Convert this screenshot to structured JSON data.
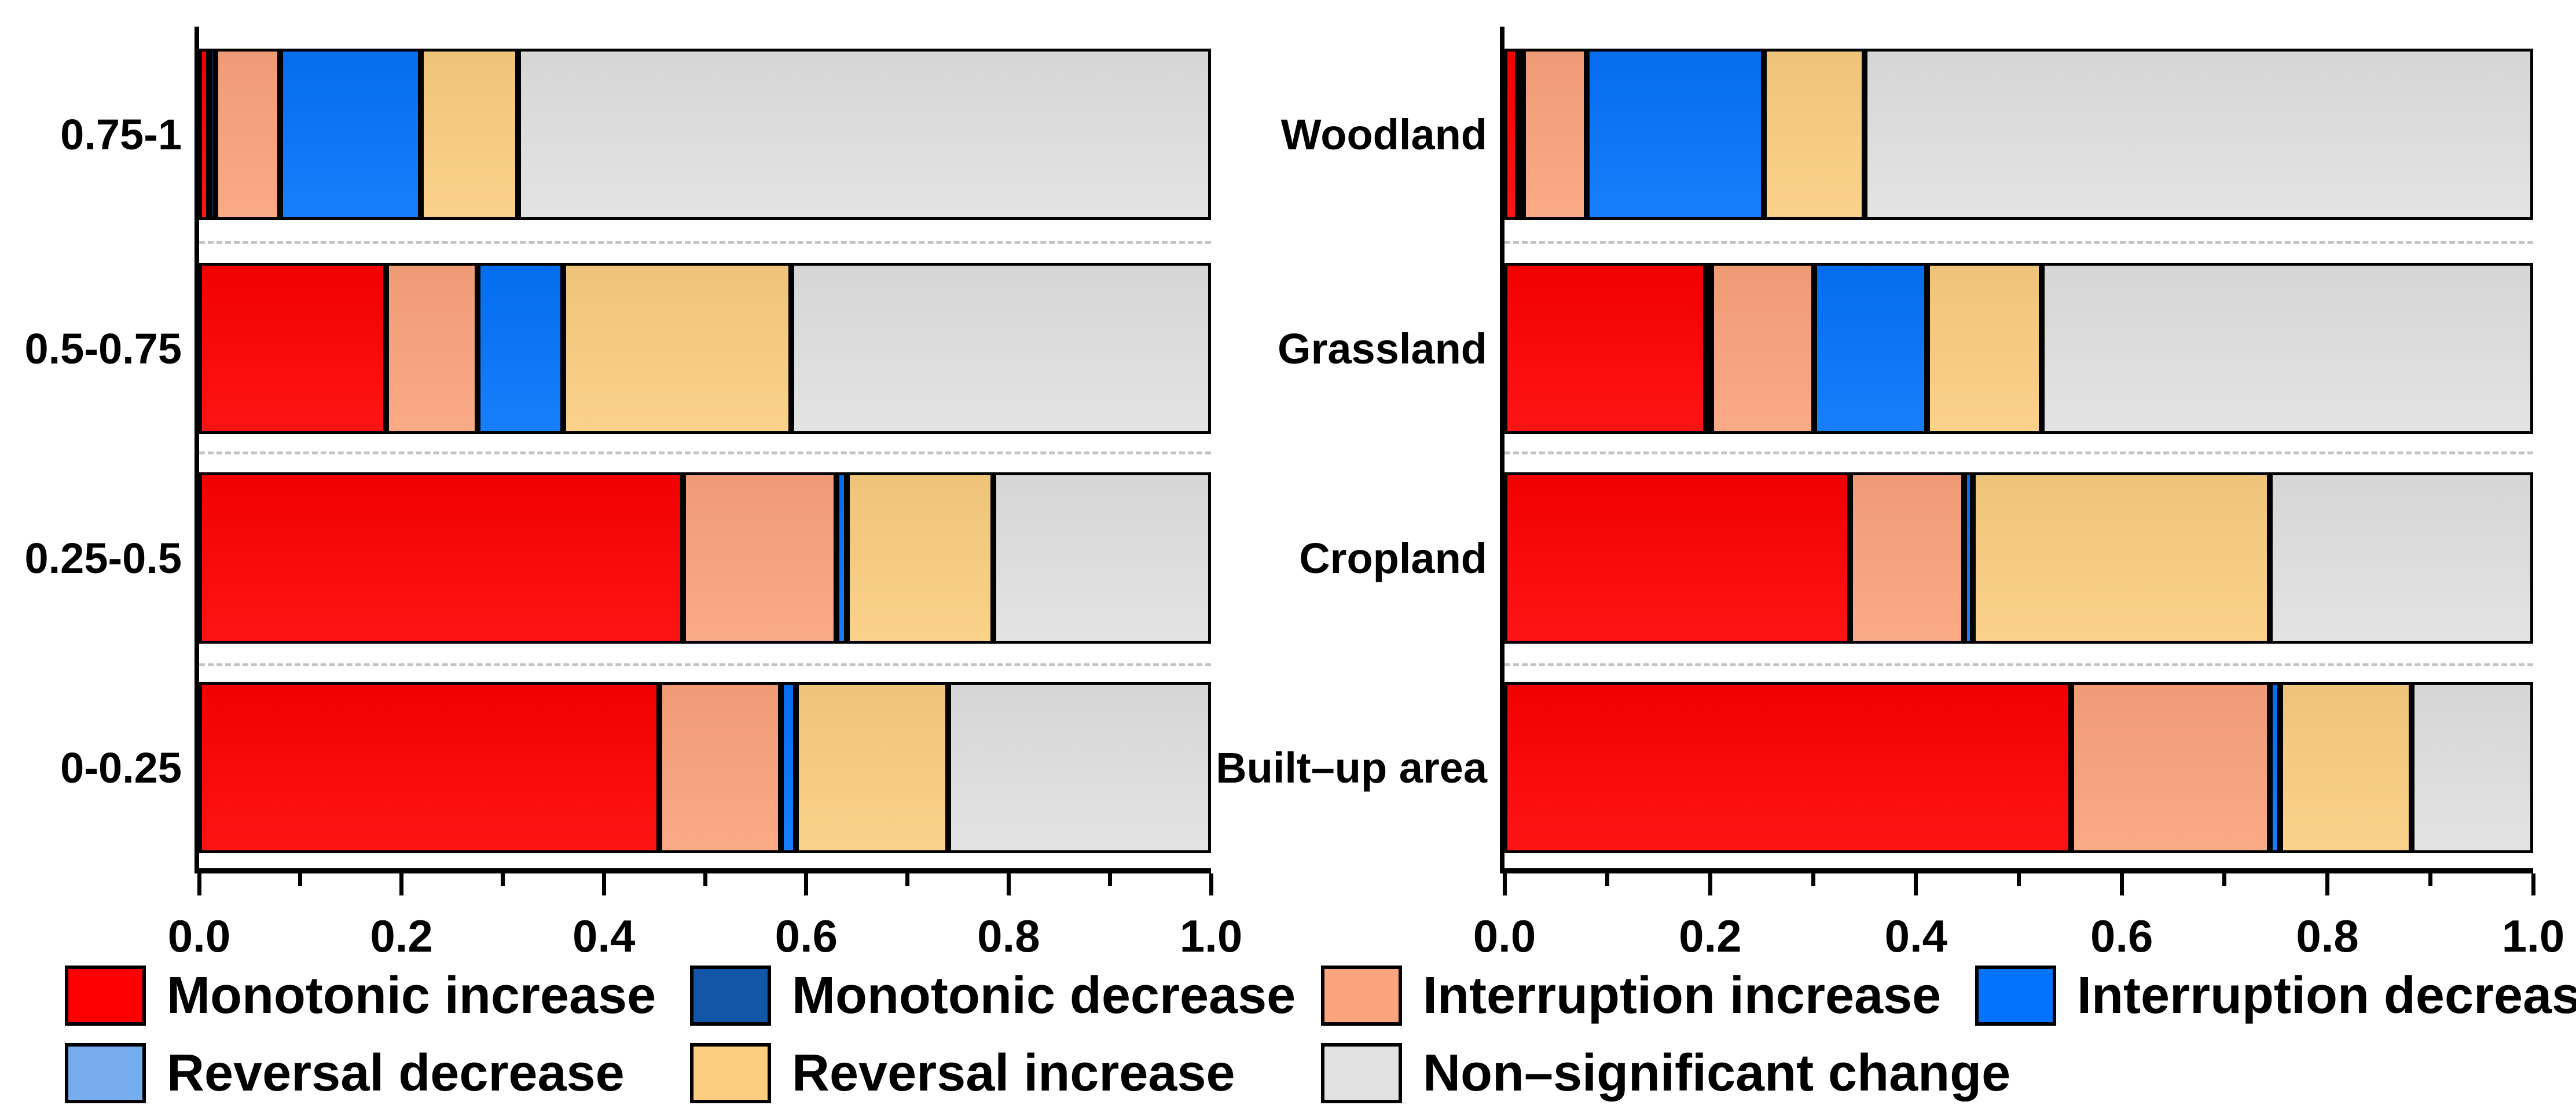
{
  "figure": {
    "background": "#ffffff",
    "axis_color": "#000000",
    "gridline_color": "#c3c3c3",
    "text_color": "#000000"
  },
  "chart_data": [
    {
      "type": "bar",
      "orientation": "horizontal-stacked",
      "title": "",
      "xlabel": "",
      "ylabel": "",
      "xlim": [
        0,
        1
      ],
      "x_ticks": [
        "0.0",
        "0.2",
        "0.4",
        "0.6",
        "0.8",
        "1.0"
      ],
      "grid": "dashed horizontal separators between bars",
      "categories": [
        "0.75-1",
        "0.5-0.75",
        "0.25-0.5",
        "0-0.25"
      ],
      "series": [
        {
          "name": "Monotonic increase",
          "color": "#fe0000",
          "values": [
            0.01,
            0.185,
            0.478,
            0.455
          ]
        },
        {
          "name": "Monotonic decrease",
          "color": "#1356a8",
          "values": [
            0.006,
            0.0,
            0.0,
            0.0
          ]
        },
        {
          "name": "Interruption increase",
          "color": "#fba37c",
          "values": [
            0.064,
            0.09,
            0.152,
            0.12
          ]
        },
        {
          "name": "Interruption decrease",
          "color": "#0473fb",
          "values": [
            0.139,
            0.085,
            0.01,
            0.015
          ]
        },
        {
          "name": "Reversal decrease",
          "color": "#76adf1",
          "values": [
            0.0,
            0.0,
            0.0,
            0.0
          ]
        },
        {
          "name": "Reversal increase",
          "color": "#fbce80",
          "values": [
            0.096,
            0.225,
            0.145,
            0.15
          ]
        },
        {
          "name": "Non–significant change",
          "color": "#e1e1e1",
          "values": [
            0.685,
            0.415,
            0.215,
            0.26
          ]
        }
      ]
    },
    {
      "type": "bar",
      "orientation": "horizontal-stacked",
      "title": "",
      "xlabel": "",
      "ylabel": "",
      "xlim": [
        0,
        1
      ],
      "x_ticks": [
        "0.0",
        "0.2",
        "0.4",
        "0.6",
        "0.8",
        "1.0"
      ],
      "grid": "dashed horizontal separators between bars",
      "categories": [
        "Woodland",
        "Grassland",
        "Cropland",
        "Built–up area"
      ],
      "series": [
        {
          "name": "Monotonic increase",
          "color": "#fe0000",
          "values": [
            0.013,
            0.196,
            0.336,
            0.551
          ]
        },
        {
          "name": "Monotonic decrease",
          "color": "#1356a8",
          "values": [
            0.005,
            0.005,
            0.0,
            0.0
          ]
        },
        {
          "name": "Interruption increase",
          "color": "#fba37c",
          "values": [
            0.062,
            0.1,
            0.111,
            0.193
          ]
        },
        {
          "name": "Interruption decrease",
          "color": "#0473fb",
          "values": [
            0.172,
            0.11,
            0.008,
            0.01
          ]
        },
        {
          "name": "Reversal decrease",
          "color": "#76adf1",
          "values": [
            0.0,
            0.0,
            0.0,
            0.0
          ]
        },
        {
          "name": "Reversal increase",
          "color": "#fbce80",
          "values": [
            0.098,
            0.111,
            0.289,
            0.128
          ]
        },
        {
          "name": "Non–significant change",
          "color": "#e1e1e1",
          "values": [
            0.65,
            0.478,
            0.256,
            0.118
          ]
        }
      ]
    }
  ],
  "legend": {
    "position": "bottom",
    "entries": [
      {
        "label": "Monotonic increase",
        "color": "#fe0000"
      },
      {
        "label": "Monotonic decrease",
        "color": "#1356a8"
      },
      {
        "label": "Interruption increase",
        "color": "#fba37c"
      },
      {
        "label": "Interruption decrease",
        "color": "#0473fb"
      },
      {
        "label": "Reversal decrease",
        "color": "#76adf1"
      },
      {
        "label": "Reversal increase",
        "color": "#fbce80"
      },
      {
        "label": "Non–significant change",
        "color": "#e1e1e1"
      }
    ]
  }
}
